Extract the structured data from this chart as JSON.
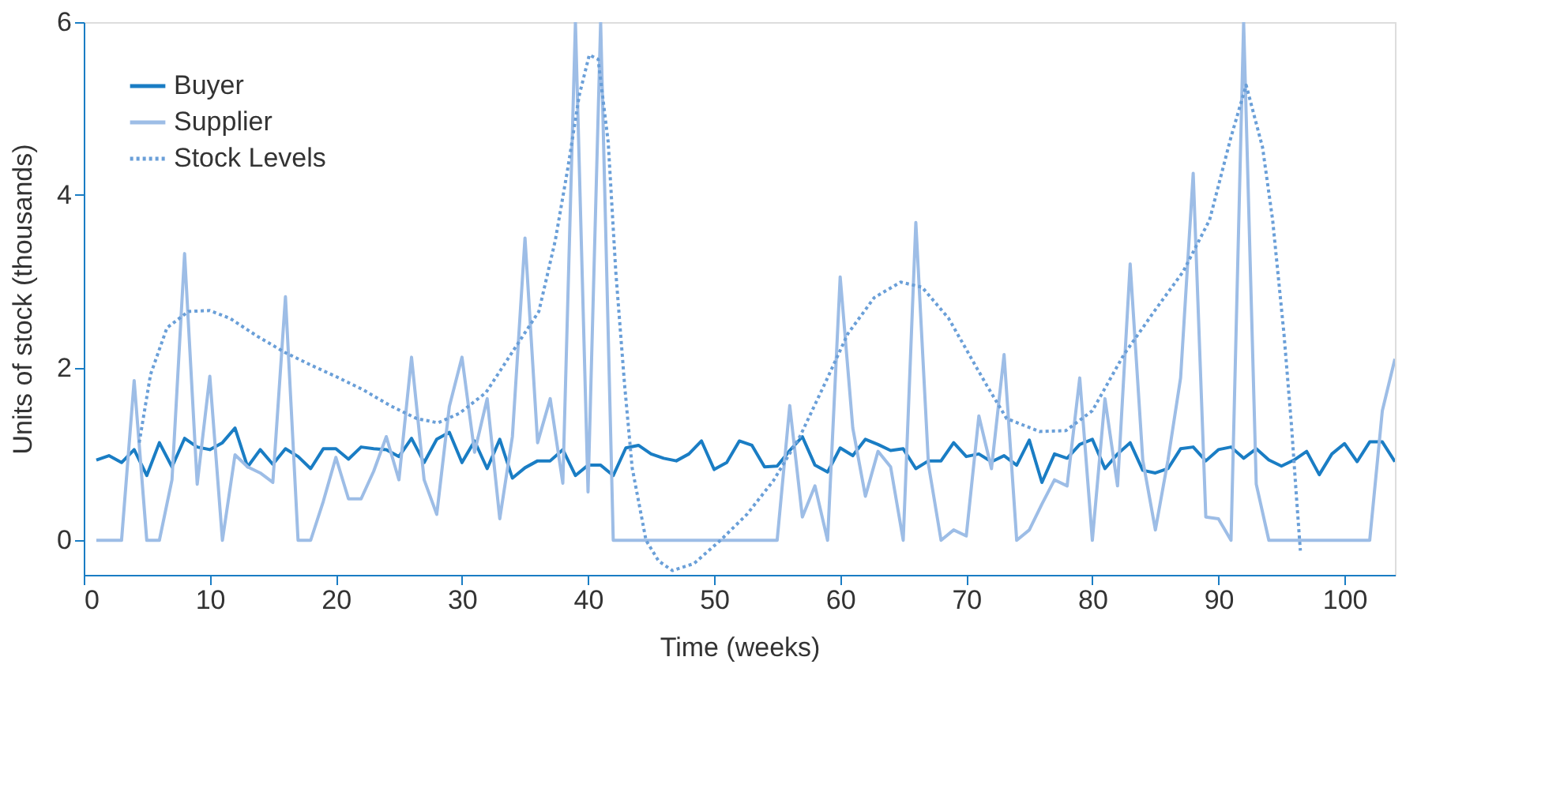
{
  "chart_data": {
    "type": "line",
    "xlabel": "Time (weeks)",
    "ylabel": "Units of stock (thousands)",
    "xlim": [
      0,
      104
    ],
    "xticks": [
      0,
      10,
      20,
      30,
      40,
      50,
      60,
      70,
      80,
      90,
      100
    ],
    "ylim": [
      -0.4,
      6
    ],
    "yticks": [
      0,
      2,
      4,
      6
    ],
    "grid": false,
    "legend": "top left",
    "marker": "none",
    "series": [
      {
        "name": "Buyer",
        "color": "#1a7dc4",
        "line_style": "solid",
        "x": [
          1,
          2,
          3,
          4,
          5,
          6,
          7,
          8,
          9,
          10,
          11,
          12,
          13,
          14,
          15,
          16,
          17,
          18,
          19,
          20,
          21,
          22,
          23,
          24,
          25,
          26,
          27,
          28,
          29,
          30,
          31,
          32,
          33,
          34,
          35,
          36,
          37,
          38,
          39,
          40,
          41,
          42,
          43,
          44,
          45,
          46,
          47,
          48,
          49,
          50,
          51,
          52,
          53,
          54,
          55,
          56,
          57,
          58,
          59,
          60,
          61,
          62,
          63,
          64,
          65,
          66,
          67,
          68,
          69,
          70,
          71,
          72,
          73,
          74,
          75,
          76,
          77,
          78,
          79,
          80,
          81,
          82,
          83,
          84,
          85,
          86,
          87,
          88,
          89,
          90,
          91,
          92,
          93,
          94,
          95,
          96,
          97,
          98,
          99,
          100,
          101,
          102,
          103,
          104
        ],
        "values": [
          0.93,
          0.98,
          0.9,
          1.05,
          0.75,
          1.13,
          0.85,
          1.18,
          1.08,
          1.05,
          1.13,
          1.3,
          0.85,
          1.05,
          0.88,
          1.06,
          0.97,
          0.83,
          1.06,
          1.06,
          0.94,
          1.08,
          1.06,
          1.05,
          0.97,
          1.18,
          0.9,
          1.17,
          1.25,
          0.9,
          1.15,
          0.83,
          1.17,
          0.72,
          0.84,
          0.92,
          0.92,
          1.05,
          0.75,
          0.87,
          0.87,
          0.75,
          1.07,
          1.1,
          1.0,
          0.95,
          0.92,
          1.0,
          1.15,
          0.82,
          0.9,
          1.15,
          1.1,
          0.85,
          0.86,
          1.04,
          1.2,
          0.87,
          0.79,
          1.07,
          0.98,
          1.17,
          1.11,
          1.04,
          1.06,
          0.83,
          0.92,
          0.92,
          1.13,
          0.97,
          1.0,
          0.91,
          0.98,
          0.87,
          1.16,
          0.67,
          1.0,
          0.95,
          1.11,
          1.17,
          0.83,
          1.0,
          1.13,
          0.81,
          0.78,
          0.83,
          1.06,
          1.08,
          0.92,
          1.05,
          1.08,
          0.95,
          1.06,
          0.93,
          0.86,
          0.93,
          1.03,
          0.76,
          1.0,
          1.12,
          0.91,
          1.14,
          1.14,
          0.91
        ]
      },
      {
        "name": "Supplier",
        "color": "#9dbde6",
        "line_style": "solid",
        "x": [
          1,
          2,
          3,
          4,
          5,
          6,
          7,
          8,
          9,
          10,
          11,
          12,
          13,
          14,
          15,
          16,
          17,
          18,
          19,
          20,
          21,
          22,
          23,
          24,
          25,
          26,
          27,
          28,
          29,
          30,
          31,
          32,
          33,
          34,
          35,
          36,
          37,
          38,
          39,
          40,
          41,
          42,
          43,
          44,
          45,
          46,
          47,
          48,
          49,
          50,
          51,
          52,
          53,
          54,
          55,
          56,
          57,
          58,
          59,
          60,
          61,
          62,
          63,
          64,
          65,
          66,
          67,
          68,
          69,
          70,
          71,
          72,
          73,
          74,
          75,
          76,
          77,
          78,
          79,
          80,
          81,
          82,
          83,
          84,
          85,
          86,
          87,
          88,
          89,
          90,
          91,
          92,
          93,
          94,
          95,
          96,
          97,
          98,
          99,
          100,
          101,
          102,
          103,
          104
        ],
        "values": [
          0,
          0,
          0,
          1.85,
          0,
          0,
          0.7,
          3.32,
          0.65,
          1.9,
          0,
          0.99,
          0.85,
          0.78,
          0.67,
          2.82,
          0,
          0,
          0.45,
          0.96,
          0.48,
          0.48,
          0.8,
          1.2,
          0.7,
          2.12,
          0.7,
          0.3,
          1.55,
          2.12,
          1.02,
          1.64,
          0.25,
          1.2,
          3.5,
          1.13,
          1.64,
          0.66,
          6,
          0.56,
          6,
          0,
          0,
          0,
          0,
          0,
          0,
          0,
          0,
          0,
          0,
          0,
          0,
          0,
          0,
          1.56,
          0.27,
          0.63,
          0,
          3.05,
          1.3,
          0.51,
          1.03,
          0.85,
          0,
          3.68,
          0.88,
          0,
          0.12,
          0.05,
          1.44,
          0.83,
          2.15,
          0,
          0.12,
          0.42,
          0.7,
          0.63,
          1.88,
          0,
          1.64,
          0.63,
          3.2,
          0.93,
          0.12,
          0.93,
          1.88,
          4.25,
          0.27,
          0.25,
          0,
          6,
          0.65,
          0,
          0,
          0,
          0,
          0,
          0,
          0,
          0,
          0,
          1.5,
          2.1
        ]
      },
      {
        "name": "Stock Levels",
        "color": "#6a9fd8",
        "line_style": "dotted",
        "x": [
          4.4,
          5.3,
          6.6,
          8.3,
          10.0,
          11.6,
          13.8,
          15.9,
          18.0,
          20.1,
          22.2,
          24.3,
          26.4,
          28.1,
          29.8,
          31.9,
          34.0,
          36.1,
          37.4,
          38.4,
          39.3,
          40.1,
          40.8,
          41.6,
          42.2,
          42.9,
          43.5,
          44.6,
          45.6,
          46.7,
          48.4,
          50.5,
          52.6,
          54.7,
          56.8,
          58.9,
          60.6,
          62.7,
          64.8,
          66.5,
          68.6,
          70.7,
          71.6,
          73.2,
          75.8,
          77.9,
          80.0,
          82.5,
          85.1,
          87.2,
          89.3,
          91.0,
          92.2,
          93.5,
          94.3,
          95.2,
          95.8,
          96.2,
          96.5
        ],
        "values": [
          1.13,
          1.92,
          2.46,
          2.65,
          2.66,
          2.57,
          2.36,
          2.18,
          2.03,
          1.89,
          1.74,
          1.56,
          1.41,
          1.36,
          1.47,
          1.71,
          2.18,
          2.65,
          3.47,
          4.31,
          5.15,
          5.62,
          5.57,
          4.61,
          3.11,
          1.8,
          0.84,
          0,
          -0.24,
          -0.35,
          -0.27,
          0,
          0.3,
          0.69,
          1.2,
          1.85,
          2.39,
          2.81,
          2.99,
          2.93,
          2.57,
          2.03,
          1.8,
          1.41,
          1.26,
          1.27,
          1.5,
          2.15,
          2.69,
          3.11,
          3.71,
          4.67,
          5.27,
          4.55,
          3.71,
          2.39,
          1.32,
          0.48,
          -0.12
        ]
      }
    ]
  }
}
